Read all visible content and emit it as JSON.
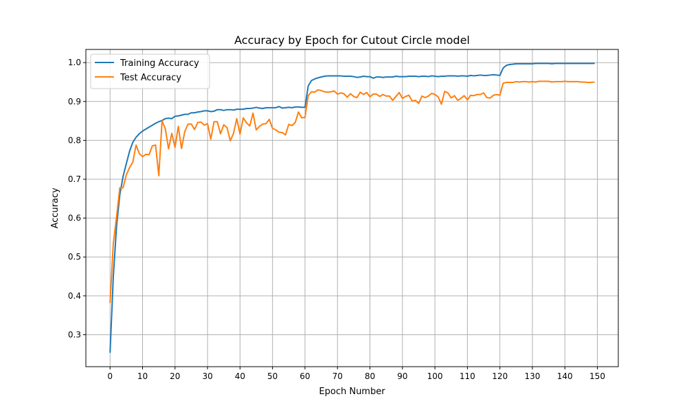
{
  "chart_data": {
    "type": "line",
    "title": "Accuracy by Epoch for Cutout Circle model",
    "xlabel": "Epoch Number",
    "ylabel": "Accuracy",
    "xlim": [
      -7.45,
      156.45
    ],
    "ylim": [
      0.2178,
      1.0339
    ],
    "xticks": [
      0,
      10,
      20,
      30,
      40,
      50,
      60,
      70,
      80,
      90,
      100,
      110,
      120,
      130,
      140,
      150
    ],
    "yticks": [
      0.3,
      0.4,
      0.5,
      0.6,
      0.7,
      0.8,
      0.9,
      1.0
    ],
    "ytick_labels": [
      "0.3",
      "0.4",
      "0.5",
      "0.6",
      "0.7",
      "0.8",
      "0.9",
      "1.0"
    ],
    "grid": true,
    "legend_position": "top-left",
    "series": [
      {
        "name": "Training Accuracy",
        "color": "#1f77b4",
        "x": [
          0,
          1,
          2,
          3,
          4,
          5,
          6,
          7,
          8,
          9,
          10,
          11,
          12,
          13,
          14,
          15,
          16,
          17,
          18,
          19,
          20,
          21,
          22,
          23,
          24,
          25,
          26,
          27,
          28,
          29,
          30,
          31,
          32,
          33,
          34,
          35,
          36,
          37,
          38,
          39,
          40,
          41,
          42,
          43,
          44,
          45,
          46,
          47,
          48,
          49,
          50,
          51,
          52,
          53,
          54,
          55,
          56,
          57,
          58,
          59,
          60,
          61,
          62,
          63,
          64,
          65,
          66,
          67,
          68,
          69,
          70,
          71,
          72,
          73,
          74,
          75,
          76,
          77,
          78,
          79,
          80,
          81,
          82,
          83,
          84,
          85,
          86,
          87,
          88,
          89,
          90,
          91,
          92,
          93,
          94,
          95,
          96,
          97,
          98,
          99,
          100,
          101,
          102,
          103,
          104,
          105,
          106,
          107,
          108,
          109,
          110,
          111,
          112,
          113,
          114,
          115,
          116,
          117,
          118,
          119,
          120,
          121,
          122,
          123,
          124,
          125,
          126,
          127,
          128,
          129,
          130,
          131,
          132,
          133,
          134,
          135,
          136,
          137,
          138,
          139,
          140,
          141,
          142,
          143,
          144,
          145,
          146,
          147,
          148,
          149
        ],
        "values": [
          0.255,
          0.45,
          0.58,
          0.66,
          0.707,
          0.74,
          0.772,
          0.795,
          0.808,
          0.817,
          0.824,
          0.829,
          0.834,
          0.839,
          0.844,
          0.848,
          0.851,
          0.856,
          0.857,
          0.856,
          0.862,
          0.863,
          0.865,
          0.867,
          0.867,
          0.871,
          0.871,
          0.873,
          0.874,
          0.876,
          0.876,
          0.874,
          0.875,
          0.879,
          0.879,
          0.877,
          0.879,
          0.879,
          0.878,
          0.88,
          0.88,
          0.88,
          0.882,
          0.882,
          0.883,
          0.885,
          0.883,
          0.882,
          0.884,
          0.884,
          0.884,
          0.884,
          0.887,
          0.883,
          0.884,
          0.885,
          0.884,
          0.886,
          0.886,
          0.885,
          0.885,
          0.94,
          0.954,
          0.958,
          0.961,
          0.963,
          0.965,
          0.966,
          0.966,
          0.966,
          0.966,
          0.966,
          0.965,
          0.965,
          0.965,
          0.964,
          0.962,
          0.963,
          0.965,
          0.964,
          0.964,
          0.96,
          0.963,
          0.963,
          0.962,
          0.963,
          0.963,
          0.963,
          0.965,
          0.964,
          0.964,
          0.964,
          0.965,
          0.965,
          0.965,
          0.964,
          0.965,
          0.965,
          0.964,
          0.966,
          0.965,
          0.964,
          0.965,
          0.965,
          0.966,
          0.966,
          0.966,
          0.965,
          0.966,
          0.966,
          0.965,
          0.967,
          0.966,
          0.967,
          0.968,
          0.967,
          0.967,
          0.968,
          0.969,
          0.968,
          0.967,
          0.986,
          0.993,
          0.995,
          0.996,
          0.997,
          0.997,
          0.997,
          0.997,
          0.997,
          0.997,
          0.998,
          0.998,
          0.998,
          0.998,
          0.998,
          0.997,
          0.998,
          0.998,
          0.998,
          0.998,
          0.998,
          0.998,
          0.998,
          0.998,
          0.998,
          0.998,
          0.998,
          0.998,
          0.998
        ]
      },
      {
        "name": "Test Accuracy",
        "color": "#ff7f0e",
        "x": [
          0,
          1,
          2,
          3,
          4,
          5,
          6,
          7,
          8,
          9,
          10,
          11,
          12,
          13,
          14,
          15,
          16,
          17,
          18,
          19,
          20,
          21,
          22,
          23,
          24,
          25,
          26,
          27,
          28,
          29,
          30,
          31,
          32,
          33,
          34,
          35,
          36,
          37,
          38,
          39,
          40,
          41,
          42,
          43,
          44,
          45,
          46,
          47,
          48,
          49,
          50,
          51,
          52,
          53,
          54,
          55,
          56,
          57,
          58,
          59,
          60,
          61,
          62,
          63,
          64,
          65,
          66,
          67,
          68,
          69,
          70,
          71,
          72,
          73,
          74,
          75,
          76,
          77,
          78,
          79,
          80,
          81,
          82,
          83,
          84,
          85,
          86,
          87,
          88,
          89,
          90,
          91,
          92,
          93,
          94,
          95,
          96,
          97,
          98,
          99,
          100,
          101,
          102,
          103,
          104,
          105,
          106,
          107,
          108,
          109,
          110,
          111,
          112,
          113,
          114,
          115,
          116,
          117,
          118,
          119,
          120,
          121,
          122,
          123,
          124,
          125,
          126,
          127,
          128,
          129,
          130,
          131,
          132,
          133,
          134,
          135,
          136,
          137,
          138,
          139,
          140,
          141,
          142,
          143,
          144,
          145,
          146,
          147,
          148,
          149
        ],
        "values": [
          0.383,
          0.535,
          0.603,
          0.678,
          0.678,
          0.711,
          0.73,
          0.744,
          0.788,
          0.766,
          0.758,
          0.764,
          0.763,
          0.786,
          0.788,
          0.709,
          0.85,
          0.83,
          0.778,
          0.818,
          0.782,
          0.836,
          0.779,
          0.823,
          0.842,
          0.842,
          0.828,
          0.846,
          0.847,
          0.839,
          0.843,
          0.803,
          0.848,
          0.848,
          0.817,
          0.84,
          0.833,
          0.799,
          0.818,
          0.856,
          0.816,
          0.858,
          0.845,
          0.837,
          0.87,
          0.827,
          0.836,
          0.842,
          0.843,
          0.854,
          0.831,
          0.827,
          0.821,
          0.82,
          0.814,
          0.841,
          0.838,
          0.846,
          0.873,
          0.858,
          0.859,
          0.915,
          0.925,
          0.924,
          0.93,
          0.928,
          0.925,
          0.924,
          0.925,
          0.927,
          0.919,
          0.922,
          0.92,
          0.911,
          0.92,
          0.913,
          0.91,
          0.924,
          0.918,
          0.923,
          0.912,
          0.919,
          0.919,
          0.913,
          0.918,
          0.914,
          0.914,
          0.903,
          0.913,
          0.923,
          0.908,
          0.913,
          0.916,
          0.901,
          0.903,
          0.895,
          0.914,
          0.91,
          0.914,
          0.921,
          0.918,
          0.912,
          0.893,
          0.926,
          0.922,
          0.909,
          0.915,
          0.903,
          0.908,
          0.915,
          0.904,
          0.916,
          0.915,
          0.918,
          0.918,
          0.922,
          0.91,
          0.909,
          0.916,
          0.918,
          0.916,
          0.947,
          0.949,
          0.949,
          0.949,
          0.951,
          0.95,
          0.951,
          0.951,
          0.95,
          0.951,
          0.95,
          0.952,
          0.952,
          0.952,
          0.952,
          0.95,
          0.951,
          0.951,
          0.951,
          0.952,
          0.951,
          0.951,
          0.951,
          0.951,
          0.95,
          0.95,
          0.949,
          0.949,
          0.95
        ]
      }
    ]
  }
}
